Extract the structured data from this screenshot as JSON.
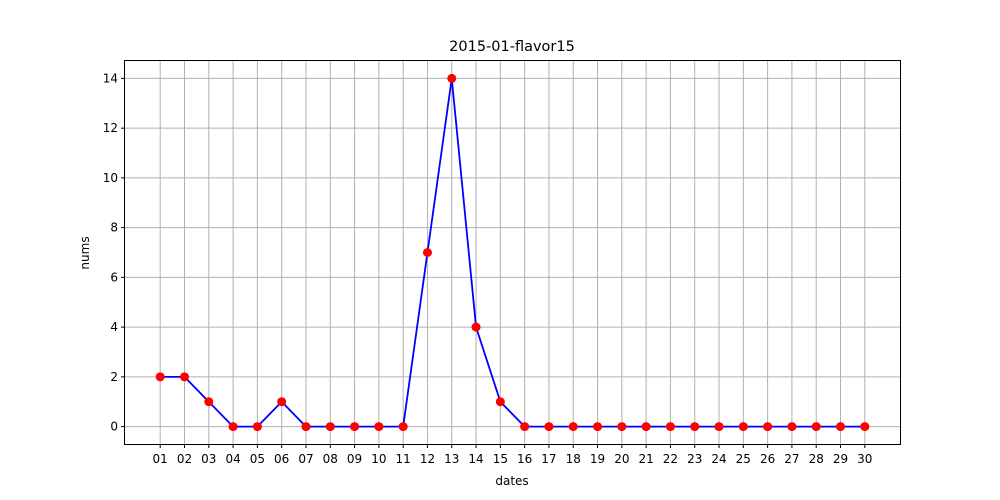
{
  "chart_data": {
    "type": "line",
    "title": "2015-01-flavor15",
    "xlabel": "dates",
    "ylabel": "nums",
    "categories": [
      "01",
      "02",
      "03",
      "04",
      "05",
      "06",
      "07",
      "08",
      "09",
      "10",
      "11",
      "12",
      "13",
      "14",
      "15",
      "16",
      "17",
      "18",
      "19",
      "20",
      "21",
      "22",
      "23",
      "24",
      "25",
      "26",
      "27",
      "28",
      "29",
      "30"
    ],
    "series": [
      {
        "values": [
          2,
          2,
          1,
          0,
          0,
          1,
          0,
          0,
          0,
          0,
          0,
          7,
          14,
          4,
          1,
          0,
          0,
          0,
          0,
          0,
          0,
          0,
          0,
          0,
          0,
          0,
          0,
          0,
          0,
          0
        ]
      }
    ],
    "yticks": [
      0,
      2,
      4,
      6,
      8,
      10,
      12,
      14
    ],
    "ylim": [
      -0.7,
      14.7
    ],
    "grid": true,
    "line_color": "#0000ff",
    "marker_color": "#ff0000"
  }
}
